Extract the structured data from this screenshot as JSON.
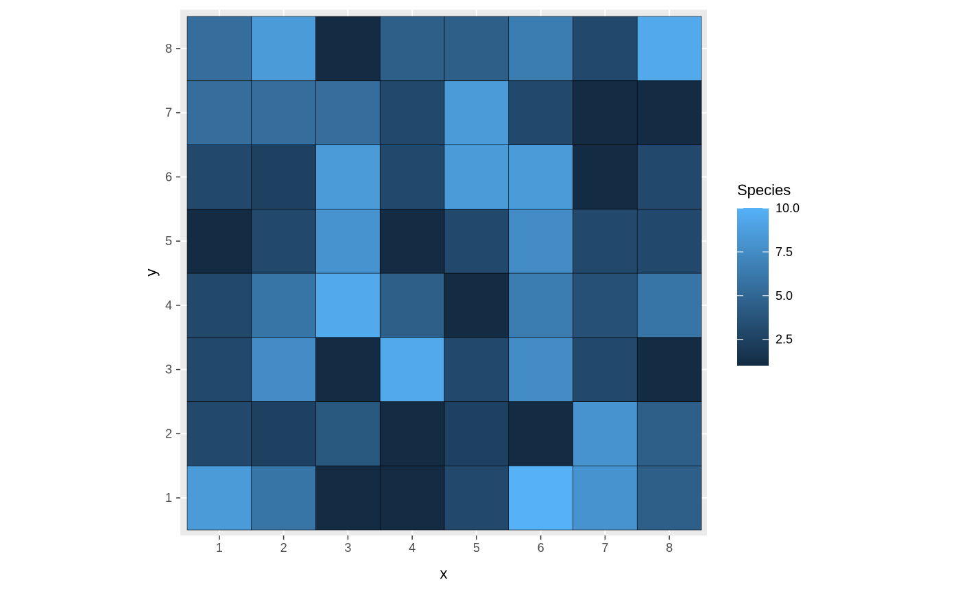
{
  "chart_data": {
    "type": "heatmap",
    "xlabel": "x",
    "ylabel": "y",
    "x_categories": [
      "1",
      "2",
      "3",
      "4",
      "5",
      "6",
      "7",
      "8"
    ],
    "y_categories": [
      "1",
      "2",
      "3",
      "4",
      "5",
      "6",
      "7",
      "8"
    ],
    "values": [
      [
        8.5,
        6.0,
        1.0,
        1.0,
        3.0,
        10.0,
        8.0,
        4.5
      ],
      [
        3.0,
        2.5,
        4.0,
        1.0,
        2.5,
        1.0,
        8.0,
        4.5
      ],
      [
        3.0,
        7.5,
        1.0,
        9.5,
        3.0,
        7.5,
        3.0,
        1.0
      ],
      [
        3.0,
        6.0,
        9.5,
        4.5,
        1.0,
        6.5,
        3.5,
        6.0
      ],
      [
        1.0,
        3.0,
        8.0,
        1.0,
        3.0,
        7.5,
        3.0,
        3.0
      ],
      [
        3.0,
        2.5,
        8.5,
        3.0,
        8.5,
        8.5,
        1.0,
        3.0
      ],
      [
        5.5,
        5.5,
        5.5,
        3.0,
        8.5,
        3.0,
        1.0,
        1.0
      ],
      [
        5.5,
        8.5,
        1.0,
        4.5,
        4.5,
        6.5,
        3.0,
        9.5
      ]
    ],
    "value_range": [
      1,
      10
    ],
    "legend": {
      "title": "Species",
      "ticks": [
        "2.5",
        "5.0",
        "7.5",
        "10.0"
      ],
      "tick_values": [
        2.5,
        5.0,
        7.5,
        10.0
      ],
      "position": "right"
    },
    "colors": {
      "low": "#132B43",
      "high": "#56B1F7",
      "panel_background": "#EBEBEB",
      "grid": "#FFFFFF",
      "tile_border": "#000000"
    },
    "grid": true
  }
}
